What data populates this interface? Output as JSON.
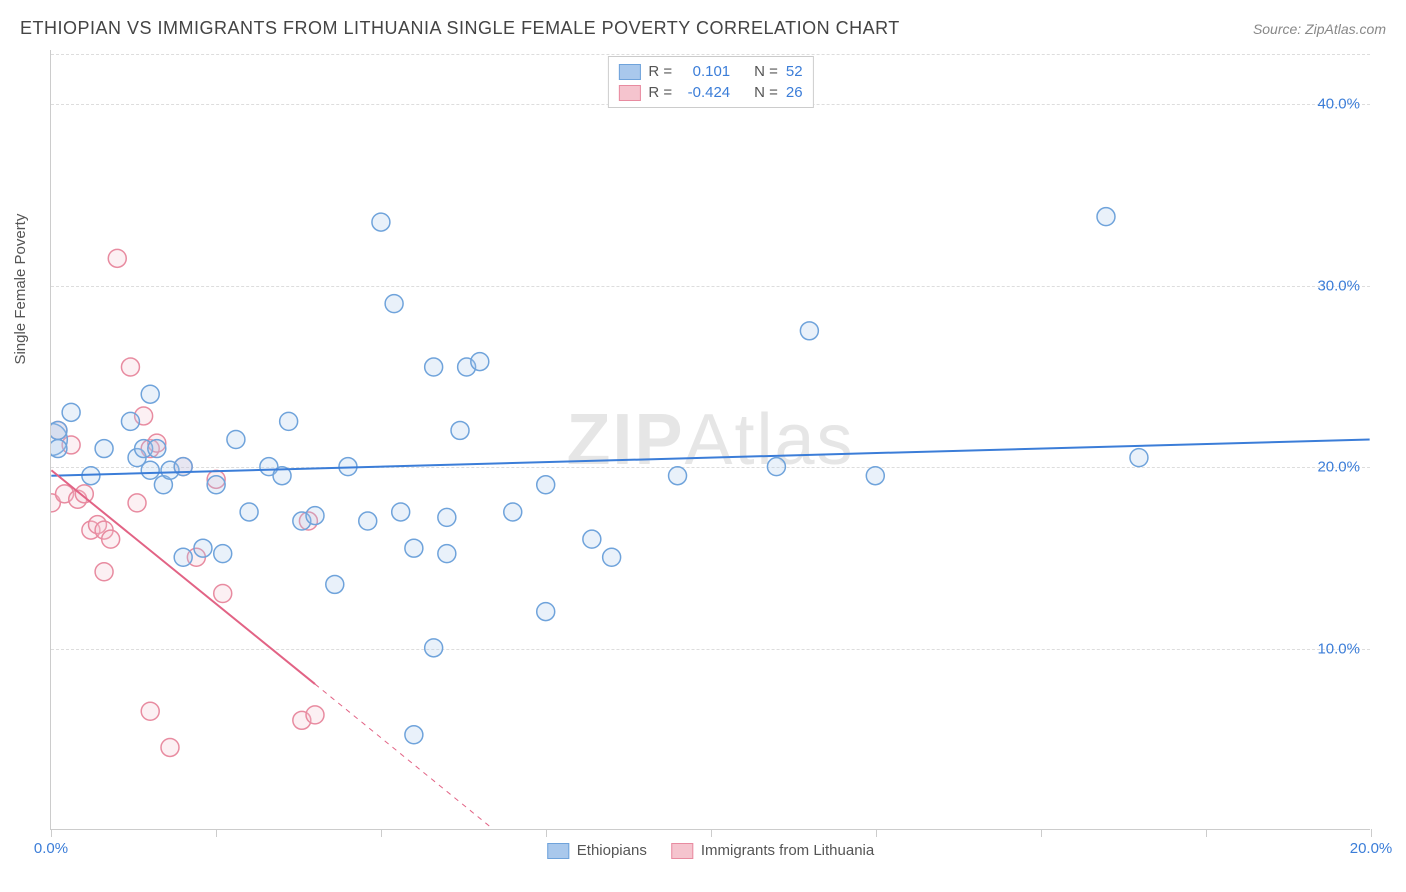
{
  "header": {
    "title": "ETHIOPIAN VS IMMIGRANTS FROM LITHUANIA SINGLE FEMALE POVERTY CORRELATION CHART",
    "source": "Source: ZipAtlas.com"
  },
  "watermark": {
    "bold": "ZIP",
    "light": "Atlas"
  },
  "chart": {
    "type": "scatter",
    "y_axis_title": "Single Female Poverty",
    "xlim": [
      0,
      20
    ],
    "ylim": [
      0,
      43
    ],
    "x_ticks": [
      0,
      2.5,
      5,
      7.5,
      10,
      12.5,
      15,
      17.5,
      20
    ],
    "x_tick_labels": {
      "0": "0.0%",
      "20": "20.0%"
    },
    "y_ticks": [
      10,
      20,
      30,
      40
    ],
    "y_tick_labels": {
      "10": "10.0%",
      "20": "20.0%",
      "30": "30.0%",
      "40": "40.0%"
    },
    "background_color": "#ffffff",
    "grid_color": "#dddddd",
    "axis_color": "#cccccc",
    "tick_label_color": "#3b7dd8",
    "marker_radius": 9,
    "marker_stroke_width": 1.5,
    "marker_fill_opacity": 0.25,
    "line_width": 2
  },
  "series": {
    "ethiopians": {
      "label": "Ethiopians",
      "color_fill": "#a9c8ec",
      "color_stroke": "#6fa3db",
      "line_color": "#3b7dd8",
      "R": "0.101",
      "N": "52",
      "trend": {
        "x1": 0,
        "y1": 19.5,
        "x2": 20,
        "y2": 21.5
      },
      "points": [
        [
          0.0,
          21.5,
          16
        ],
        [
          0.1,
          22.0,
          9
        ],
        [
          0.1,
          21.0,
          9
        ],
        [
          0.3,
          23.0,
          9
        ],
        [
          0.6,
          19.5,
          9
        ],
        [
          0.8,
          21.0,
          9
        ],
        [
          1.2,
          22.5,
          9
        ],
        [
          1.3,
          20.5,
          9
        ],
        [
          1.4,
          21.0,
          9
        ],
        [
          1.5,
          24.0,
          9
        ],
        [
          1.5,
          19.8,
          9
        ],
        [
          1.6,
          21.0,
          9
        ],
        [
          1.7,
          19.0,
          9
        ],
        [
          1.8,
          19.8,
          9
        ],
        [
          2.0,
          20.0,
          9
        ],
        [
          2.0,
          15.0,
          9
        ],
        [
          2.3,
          15.5,
          9
        ],
        [
          2.5,
          19.0,
          9
        ],
        [
          2.6,
          15.2,
          9
        ],
        [
          2.8,
          21.5,
          9
        ],
        [
          3.0,
          17.5,
          9
        ],
        [
          3.3,
          20.0,
          9
        ],
        [
          3.5,
          19.5,
          9
        ],
        [
          3.6,
          22.5,
          9
        ],
        [
          3.8,
          17.0,
          9
        ],
        [
          4.0,
          17.3,
          9
        ],
        [
          4.3,
          13.5,
          9
        ],
        [
          4.5,
          20.0,
          9
        ],
        [
          4.8,
          17.0,
          9
        ],
        [
          5.0,
          33.5,
          9
        ],
        [
          5.2,
          29.0,
          9
        ],
        [
          5.3,
          17.5,
          9
        ],
        [
          5.5,
          15.5,
          9
        ],
        [
          5.5,
          5.2,
          9
        ],
        [
          5.8,
          25.5,
          9
        ],
        [
          5.8,
          10.0,
          9
        ],
        [
          6.0,
          17.2,
          9
        ],
        [
          6.0,
          15.2,
          9
        ],
        [
          6.2,
          22.0,
          9
        ],
        [
          6.3,
          25.5,
          9
        ],
        [
          6.5,
          25.8,
          9
        ],
        [
          7.0,
          17.5,
          9
        ],
        [
          7.5,
          12.0,
          9
        ],
        [
          7.5,
          19.0,
          9
        ],
        [
          8.2,
          16.0,
          9
        ],
        [
          8.5,
          15.0,
          9
        ],
        [
          9.5,
          19.5,
          9
        ],
        [
          11.0,
          20.0,
          9
        ],
        [
          11.5,
          27.5,
          9
        ],
        [
          12.5,
          19.5,
          9
        ],
        [
          16.0,
          33.8,
          9
        ],
        [
          16.5,
          20.5,
          9
        ]
      ]
    },
    "lithuania": {
      "label": "Immigrants from Lithuania",
      "color_fill": "#f5c4ce",
      "color_stroke": "#e88ba0",
      "line_color": "#e26385",
      "R": "-0.424",
      "N": "26",
      "trend": {
        "x1": 0,
        "y1": 19.8,
        "x2": 4.0,
        "y2": 8.0
      },
      "trend_dash": {
        "x1": 4.0,
        "y1": 8.0,
        "x2": 6.7,
        "y2": 0
      },
      "points": [
        [
          0.0,
          18.0,
          9
        ],
        [
          0.1,
          22.0,
          9
        ],
        [
          0.2,
          18.5,
          9
        ],
        [
          0.3,
          21.2,
          9
        ],
        [
          0.4,
          18.2,
          9
        ],
        [
          0.5,
          18.5,
          9
        ],
        [
          0.6,
          16.5,
          9
        ],
        [
          0.7,
          16.8,
          9
        ],
        [
          0.8,
          14.2,
          9
        ],
        [
          0.8,
          16.5,
          9
        ],
        [
          0.9,
          16.0,
          9
        ],
        [
          1.0,
          31.5,
          9
        ],
        [
          1.2,
          25.5,
          9
        ],
        [
          1.3,
          18.0,
          9
        ],
        [
          1.4,
          22.8,
          9
        ],
        [
          1.5,
          21.0,
          9
        ],
        [
          1.5,
          6.5,
          9
        ],
        [
          1.6,
          21.3,
          9
        ],
        [
          1.8,
          4.5,
          9
        ],
        [
          2.0,
          20.0,
          9
        ],
        [
          2.2,
          15.0,
          9
        ],
        [
          2.5,
          19.3,
          9
        ],
        [
          2.6,
          13.0,
          9
        ],
        [
          3.8,
          6.0,
          9
        ],
        [
          3.9,
          17.0,
          9
        ],
        [
          4.0,
          6.3,
          9
        ]
      ]
    }
  },
  "legend_top_labels": {
    "R": "R =",
    "N": "N ="
  }
}
